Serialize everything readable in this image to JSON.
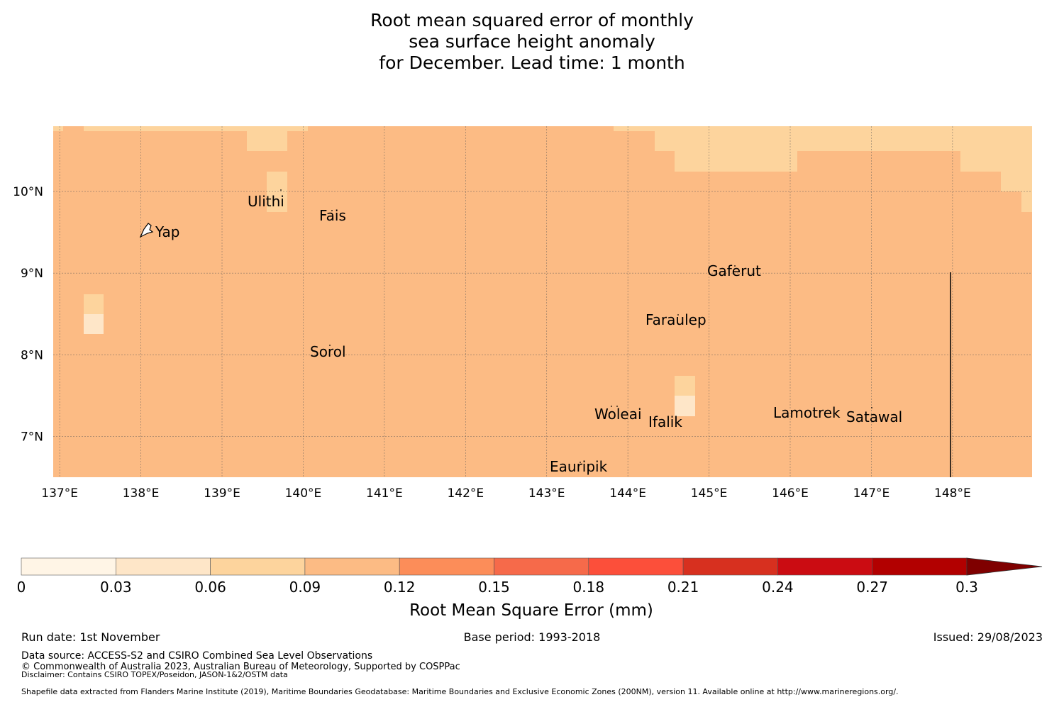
{
  "title": {
    "line1": "Root mean squared error of monthly",
    "line2": "sea surface height anomaly",
    "line3": "for December. Lead time: 1 month"
  },
  "map": {
    "lon_range": [
      136.92,
      148.98
    ],
    "lat_range": [
      6.5,
      10.8
    ],
    "lon_ticks": [
      {
        "value": 137,
        "label": "137°E"
      },
      {
        "value": 138,
        "label": "138°E"
      },
      {
        "value": 139,
        "label": "139°E"
      },
      {
        "value": 140,
        "label": "140°E"
      },
      {
        "value": 141,
        "label": "141°E"
      },
      {
        "value": 142,
        "label": "142°E"
      },
      {
        "value": 143,
        "label": "143°E"
      },
      {
        "value": 144,
        "label": "144°E"
      },
      {
        "value": 145,
        "label": "145°E"
      },
      {
        "value": 146,
        "label": "146°E"
      },
      {
        "value": 147,
        "label": "147°E"
      },
      {
        "value": 148,
        "label": "148°E"
      }
    ],
    "lat_ticks": [
      {
        "value": 10,
        "label": "10°N"
      },
      {
        "value": 9,
        "label": "9°N"
      },
      {
        "value": 8,
        "label": "8°N"
      },
      {
        "value": 7,
        "label": "7°N"
      }
    ],
    "background_value_range": "0.09-0.12",
    "places": [
      {
        "name": "Ulithi",
        "lon": 139.75,
        "lat": 9.85
      },
      {
        "name": "Fais",
        "lon": 140.45,
        "lat": 9.65
      },
      {
        "name": "Yap",
        "lon": 138.35,
        "lat": 9.45
      },
      {
        "name": "Gaferut",
        "lon": 145.35,
        "lat": 8.98
      },
      {
        "name": "Faraulep",
        "lon": 144.65,
        "lat": 8.38
      },
      {
        "name": "Sorol",
        "lon": 140.38,
        "lat": 7.98
      },
      {
        "name": "Woleai",
        "lon": 143.85,
        "lat": 7.25
      },
      {
        "name": "Lamotrek",
        "lon": 146.25,
        "lat": 7.28
      },
      {
        "name": "Satawal",
        "lon": 147.05,
        "lat": 7.22
      },
      {
        "name": "Ifalik",
        "lon": 144.5,
        "lat": 7.15
      },
      {
        "name": "Eauripik",
        "lon": 143.38,
        "lat": 6.6
      }
    ]
  },
  "colorbar": {
    "ticks": [
      "0",
      "0.03",
      "0.06",
      "0.09",
      "0.12",
      "0.15",
      "0.18",
      "0.21",
      "0.24",
      "0.27",
      "0.3"
    ],
    "colors": [
      "#fff5e6",
      "#fee6c8",
      "#fdd49d",
      "#fcbb84",
      "#fc8d59",
      "#f66a4a",
      "#fc4f3a",
      "#d7301f",
      "#cb0c12",
      "#b20000",
      "#7f0000"
    ],
    "label": "Root Mean Square Error (mm)"
  },
  "footer": {
    "run_date": "Run date: 1st November",
    "base_period": "Base period: 1993-2018",
    "issued": "Issued: 29/08/2023",
    "data_source": "Data source: ACCESS-S2 and CSIRO Combined Sea Level Observations",
    "copyright": "© Commonwealth of Australia 2023, Australian Bureau of Meteorology, Supported by COSPPac",
    "disclaimer": "Disclaimer: Contains CSIRO TOPEX/Poseidon, JASON-1&2/OSTM data",
    "shapefile": "Shapefile data extracted from Flanders Marine Institute (2019), Maritime Boundaries Geodatabase: Maritime Boundaries and Exclusive Economic Zones (200NM), version 11. Available online at http://www.marineregions.org/."
  }
}
